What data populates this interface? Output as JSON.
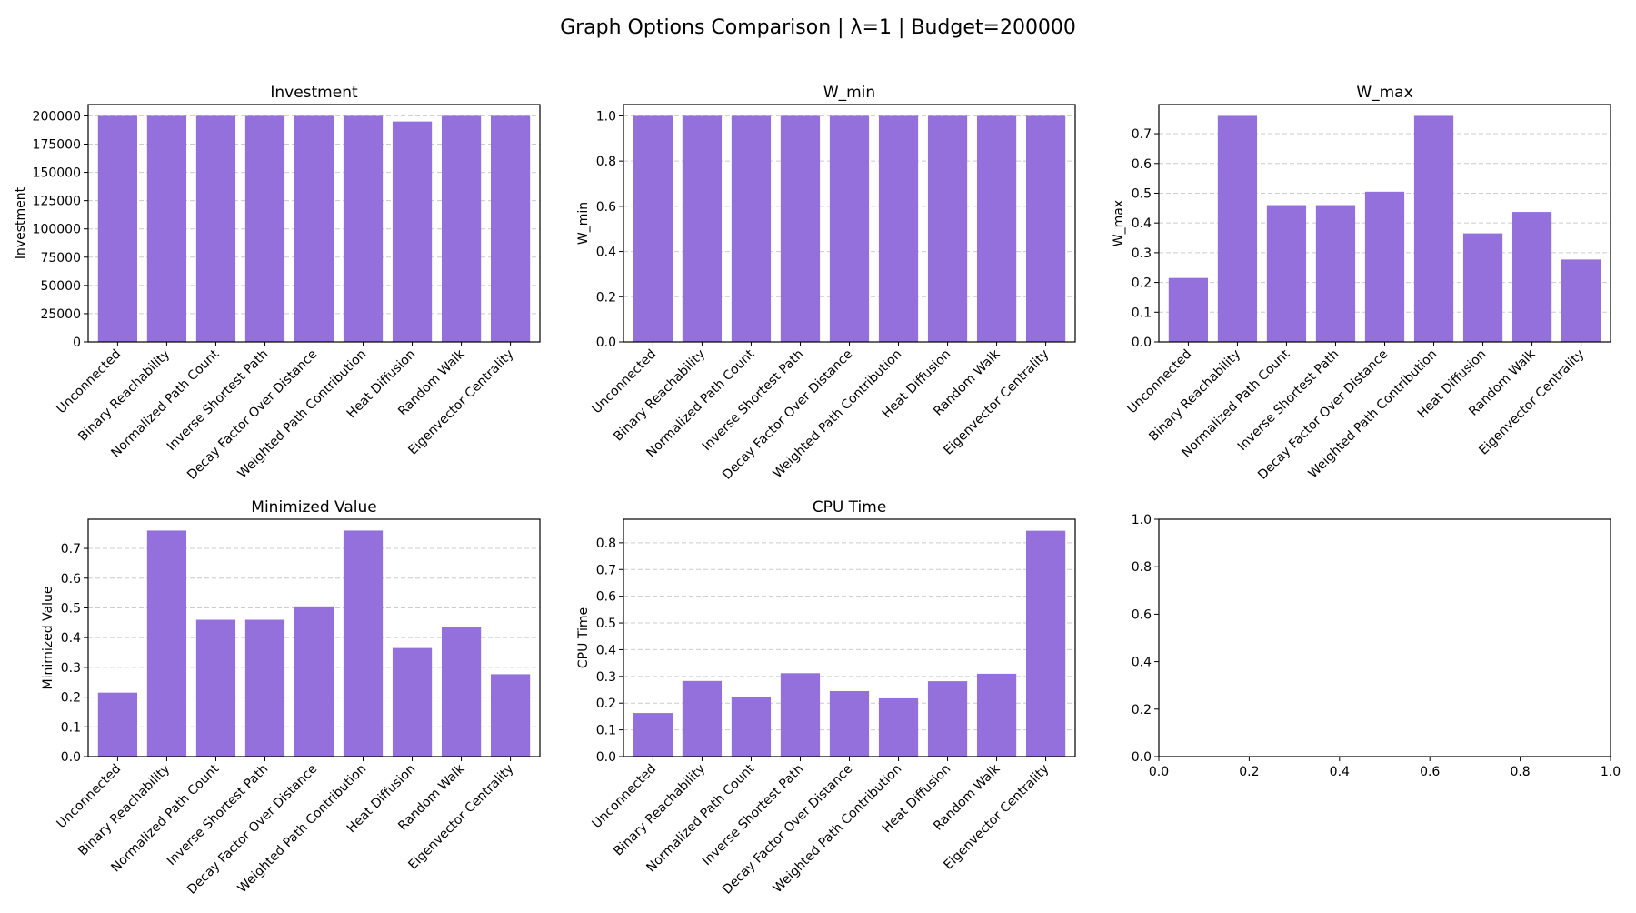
{
  "figure": {
    "title": "Graph Options Comparison | λ=1 | Budget=200000"
  },
  "colors": {
    "bar": "#9370db",
    "grid": "#cccccc",
    "axis": "#000000"
  },
  "chart_data": [
    {
      "type": "bar",
      "title": "Investment",
      "ylabel": "Investment",
      "ylim": [
        0,
        210000
      ],
      "yticks": [
        0,
        25000,
        50000,
        75000,
        100000,
        125000,
        150000,
        175000,
        200000
      ],
      "grid": "y-dashed",
      "categories": [
        "Unconnected",
        "Binary Reachability",
        "Normalized Path Count",
        "Inverse Shortest Path",
        "Decay Factor Over Distance",
        "Weighted Path Contribution",
        "Heat Diffusion",
        "Random Walk",
        "Eigenvector Centrality"
      ],
      "values": [
        200000,
        200000,
        200000,
        200000,
        200000,
        200000,
        195000,
        200000,
        200000
      ]
    },
    {
      "type": "bar",
      "title": "W_min",
      "ylabel": "W_min",
      "ylim": [
        0,
        1.05
      ],
      "yticks": [
        "0.0",
        "0.2",
        "0.4",
        "0.6",
        "0.8",
        "1.0"
      ],
      "grid": "y-dashed",
      "categories": [
        "Unconnected",
        "Binary Reachability",
        "Normalized Path Count",
        "Inverse Shortest Path",
        "Decay Factor Over Distance",
        "Weighted Path Contribution",
        "Heat Diffusion",
        "Random Walk",
        "Eigenvector Centrality"
      ],
      "values": [
        1.0,
        1.0,
        1.0,
        1.0,
        1.0,
        1.0,
        1.0,
        1.0,
        1.0
      ]
    },
    {
      "type": "bar",
      "title": "W_max",
      "ylabel": "W_max",
      "ylim": [
        0,
        0.798
      ],
      "yticks": [
        "0.0",
        "0.1",
        "0.2",
        "0.3",
        "0.4",
        "0.5",
        "0.6",
        "0.7"
      ],
      "grid": "y-dashed",
      "categories": [
        "Unconnected",
        "Binary Reachability",
        "Normalized Path Count",
        "Inverse Shortest Path",
        "Decay Factor Over Distance",
        "Weighted Path Contribution",
        "Heat Diffusion",
        "Random Walk",
        "Eigenvector Centrality"
      ],
      "values": [
        0.215,
        0.76,
        0.46,
        0.46,
        0.505,
        0.76,
        0.365,
        0.437,
        0.277
      ]
    },
    {
      "type": "bar",
      "title": "Minimized Value",
      "ylabel": "Minimized Value",
      "ylim": [
        0,
        0.798
      ],
      "yticks": [
        "0.0",
        "0.1",
        "0.2",
        "0.3",
        "0.4",
        "0.5",
        "0.6",
        "0.7"
      ],
      "grid": "y-dashed",
      "categories": [
        "Unconnected",
        "Binary Reachability",
        "Normalized Path Count",
        "Inverse Shortest Path",
        "Decay Factor Over Distance",
        "Weighted Path Contribution",
        "Heat Diffusion",
        "Random Walk",
        "Eigenvector Centrality"
      ],
      "values": [
        0.215,
        0.76,
        0.46,
        0.46,
        0.505,
        0.76,
        0.365,
        0.437,
        0.277
      ]
    },
    {
      "type": "bar",
      "title": "CPU Time",
      "ylabel": "CPU Time",
      "ylim": [
        0,
        0.888
      ],
      "yticks": [
        "0.0",
        "0.1",
        "0.2",
        "0.3",
        "0.4",
        "0.5",
        "0.6",
        "0.7",
        "0.8"
      ],
      "grid": "y-dashed",
      "categories": [
        "Unconnected",
        "Binary Reachability",
        "Normalized Path Count",
        "Inverse Shortest Path",
        "Decay Factor Over Distance",
        "Weighted Path Contribution",
        "Heat Diffusion",
        "Random Walk",
        "Eigenvector Centrality"
      ],
      "values": [
        0.163,
        0.283,
        0.222,
        0.312,
        0.245,
        0.218,
        0.282,
        0.31,
        0.845
      ]
    },
    {
      "type": "bar",
      "title": "",
      "ylabel": "",
      "xlim": [
        0,
        1
      ],
      "ylim": [
        0,
        1
      ],
      "xticks": [
        "0.0",
        "0.2",
        "0.4",
        "0.6",
        "0.8",
        "1.0"
      ],
      "yticks": [
        "0.0",
        "0.2",
        "0.4",
        "0.6",
        "0.8",
        "1.0"
      ],
      "grid": "off",
      "categories": [],
      "values": []
    }
  ]
}
